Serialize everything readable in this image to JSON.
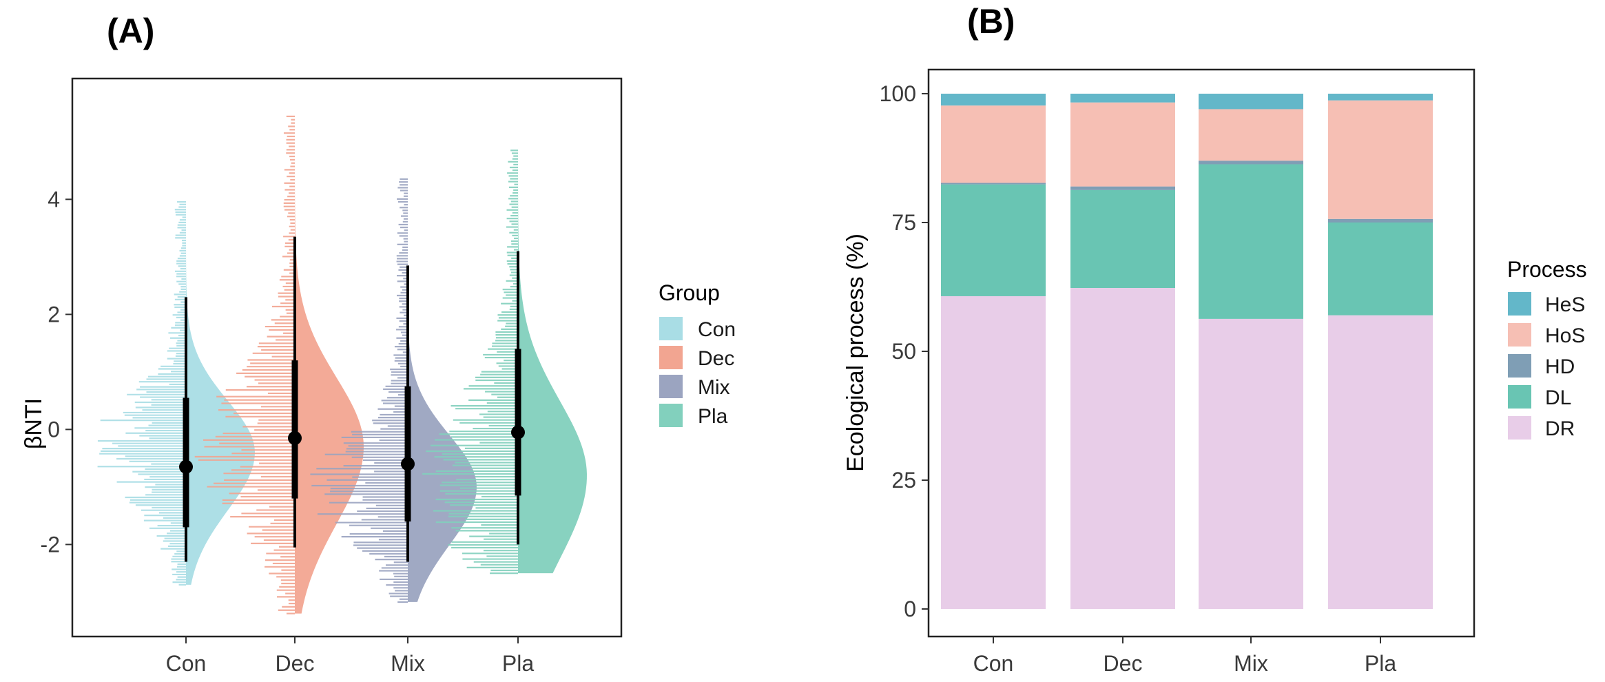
{
  "chart_data": [
    {
      "type": "raincloud",
      "panel_label": "(A)",
      "title": "",
      "xlabel": "",
      "ylabel": "βNTI",
      "ylim": [
        -3.6,
        6.1
      ],
      "yticks": [
        -2,
        0,
        2,
        4
      ],
      "ytick_labels": [
        "-2",
        "0",
        "2",
        "4"
      ],
      "categories": [
        "Con",
        "Dec",
        "Mix",
        "Pla"
      ],
      "legend_title": "Group",
      "legend_position": "right",
      "series": [
        {
          "name": "Con",
          "color": "#a9dde5",
          "median": -0.65,
          "q1": -1.7,
          "q3": 0.55,
          "whisker_low": -2.3,
          "whisker_high": 2.3,
          "min": -2.7,
          "max": 4.0,
          "mode": -0.4,
          "density_sd": 0.9
        },
        {
          "name": "Dec",
          "color": "#f2a591",
          "median": -0.15,
          "q1": -1.2,
          "q3": 1.2,
          "whisker_low": -2.05,
          "whisker_high": 3.35,
          "min": -3.2,
          "max": 5.5,
          "mode": -0.3,
          "density_sd": 1.2
        },
        {
          "name": "Mix",
          "color": "#9ba4c0",
          "median": -0.6,
          "q1": -1.6,
          "q3": 0.75,
          "whisker_low": -2.3,
          "whisker_high": 2.85,
          "min": -3.0,
          "max": 4.4,
          "mode": -1.0,
          "density_sd": 0.9
        },
        {
          "name": "Pla",
          "color": "#82d0bd",
          "median": -0.05,
          "q1": -1.15,
          "q3": 1.4,
          "whisker_low": -2.0,
          "whisker_high": 3.1,
          "min": -2.5,
          "max": 4.9,
          "mode": -0.8,
          "density_sd": 1.3
        }
      ]
    },
    {
      "type": "stacked_bar",
      "panel_label": "(B)",
      "title": "",
      "xlabel": "",
      "ylabel": "Ecological process (%)",
      "ylim": [
        0,
        100
      ],
      "yticks": [
        0,
        25,
        50,
        75,
        100
      ],
      "ytick_labels": [
        "0",
        "25",
        "50",
        "75",
        "100"
      ],
      "categories": [
        "Con",
        "Dec",
        "Mix",
        "Pla"
      ],
      "legend_title": "Process",
      "legend_position": "right",
      "series": [
        {
          "name": "DR",
          "color": "#e8cde8",
          "values": [
            60.7,
            62.3,
            56.3,
            57.0
          ]
        },
        {
          "name": "DL",
          "color": "#69c5b3",
          "values": [
            21.7,
            19.0,
            30.0,
            18.0
          ]
        },
        {
          "name": "HD",
          "color": "#7f9eb5",
          "values": [
            0.3,
            0.7,
            0.7,
            0.7
          ]
        },
        {
          "name": "HoS",
          "color": "#f6bfb4",
          "values": [
            15.0,
            16.3,
            10.0,
            23.0
          ]
        },
        {
          "name": "HeS",
          "color": "#63b7c9",
          "values": [
            2.3,
            1.7,
            3.0,
            1.3
          ]
        }
      ],
      "legend_order": [
        "HeS",
        "HoS",
        "HD",
        "DL",
        "DR"
      ]
    }
  ]
}
